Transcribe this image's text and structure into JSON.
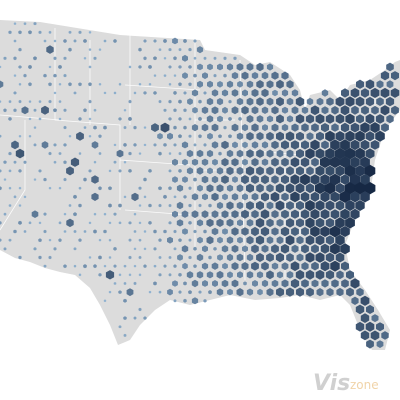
{
  "watermark": {
    "brand": "Vis",
    "suffix": "zone"
  }
}
